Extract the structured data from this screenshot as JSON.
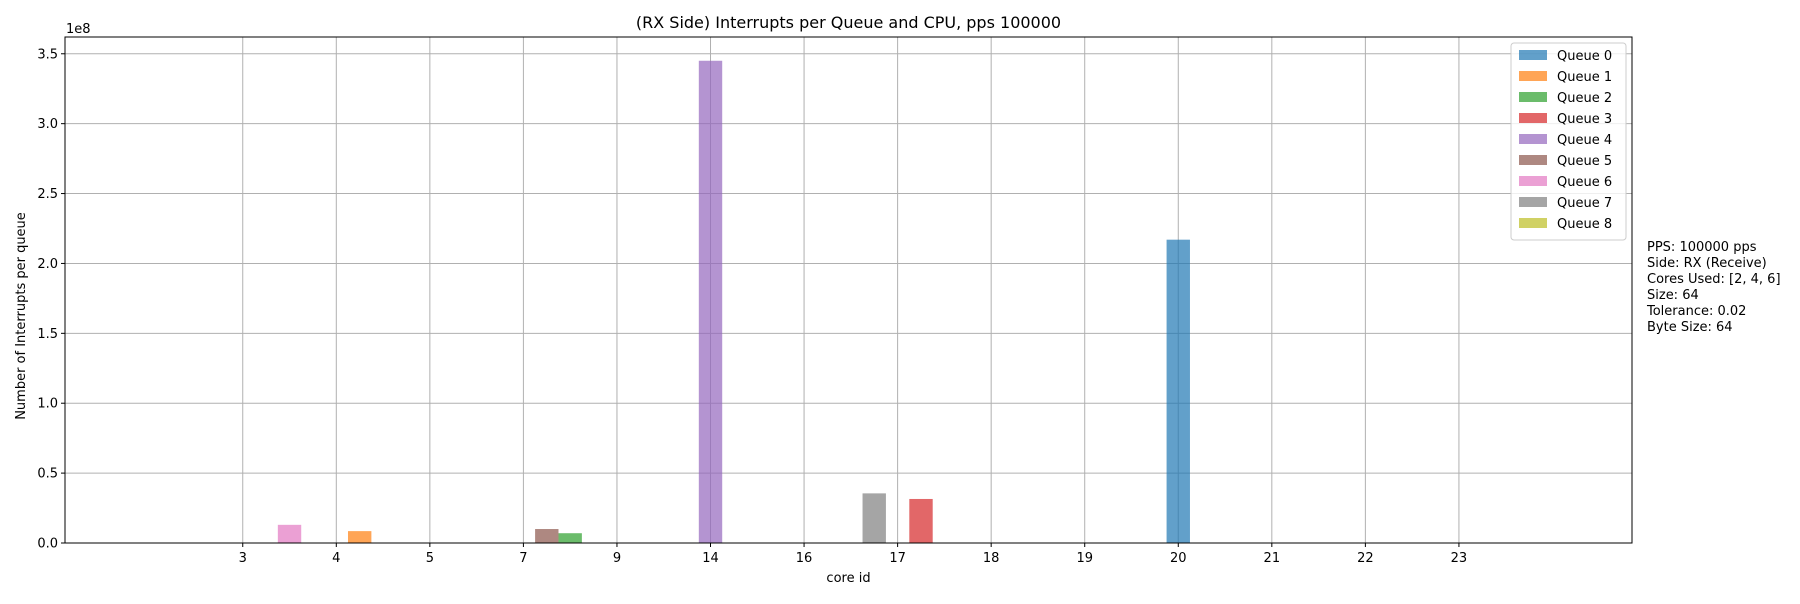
{
  "chart_data": {
    "type": "bar",
    "title": "(RX Side) Interrupts per Queue and CPU, pps 100000",
    "xlabel": "core id",
    "ylabel": "Number of Interrupts per queue",
    "y_scale_label": "1e8",
    "y_multiplier": 100000000,
    "ylim": [
      0,
      3.62
    ],
    "yticks": [
      0.0,
      0.5,
      1.0,
      1.5,
      2.0,
      2.5,
      3.0,
      3.5
    ],
    "ytick_labels": [
      "0.0",
      "0.5",
      "1.0",
      "1.5",
      "2.0",
      "2.5",
      "3.0",
      "3.5"
    ],
    "categories": [
      "3",
      "4",
      "5",
      "7",
      "9",
      "14",
      "16",
      "17",
      "18",
      "19",
      "20",
      "21",
      "22",
      "23"
    ],
    "x_range": [
      -1.9,
      14.85
    ],
    "bar_width": 0.25,
    "grid": true,
    "legend_position": "top-right",
    "series": [
      {
        "name": "Queue 0",
        "color": "#1f77b4",
        "values": [
          0,
          0,
          0,
          0,
          0,
          0,
          0,
          0,
          0,
          0,
          2.17,
          0,
          0,
          0
        ],
        "offsets": [
          0,
          0,
          0,
          0,
          0,
          0,
          0,
          0,
          0,
          0,
          0,
          0,
          0,
          0
        ]
      },
      {
        "name": "Queue 1",
        "color": "#ff7f0e",
        "values": [
          0,
          0.085,
          0,
          0,
          0,
          0,
          0,
          0,
          0,
          0,
          0,
          0,
          0,
          0
        ],
        "offsets": [
          0,
          0.25,
          0,
          0,
          0,
          0,
          0,
          0,
          0,
          0,
          0,
          0,
          0,
          0
        ]
      },
      {
        "name": "Queue 2",
        "color": "#2ca02c",
        "values": [
          0,
          0,
          0,
          0.07,
          0,
          0,
          0,
          0,
          0,
          0,
          0,
          0,
          0,
          0
        ],
        "offsets": [
          0,
          0,
          0,
          0.5,
          0,
          0,
          0,
          0,
          0,
          0,
          0,
          0,
          0,
          0
        ]
      },
      {
        "name": "Queue 3",
        "color": "#d62728",
        "values": [
          0,
          0,
          0,
          0,
          0,
          0,
          0,
          0,
          0.315,
          0,
          0,
          0,
          0,
          0
        ],
        "offsets": [
          0,
          0,
          0,
          0,
          0,
          0,
          0,
          0,
          -0.75,
          0,
          0,
          0,
          0,
          0
        ]
      },
      {
        "name": "Queue 4",
        "color": "#9467bd",
        "values": [
          0,
          0,
          0,
          0,
          0,
          3.45,
          0,
          0,
          0,
          0,
          0,
          0,
          0,
          0
        ],
        "offsets": [
          0,
          0,
          0,
          0,
          0,
          0,
          0,
          0,
          0,
          0,
          0,
          0,
          0,
          0
        ]
      },
      {
        "name": "Queue 5",
        "color": "#8c564b",
        "values": [
          0,
          0,
          0,
          0.1,
          0,
          0,
          0,
          0,
          0,
          0,
          0,
          0,
          0,
          0
        ],
        "offsets": [
          0,
          0,
          0,
          0.25,
          0,
          0,
          0,
          0,
          0,
          0,
          0,
          0,
          0,
          0
        ]
      },
      {
        "name": "Queue 6",
        "color": "#e377c2",
        "values": [
          0.13,
          0,
          0,
          0,
          0,
          0,
          0,
          0,
          0,
          0,
          0,
          0,
          0,
          0
        ],
        "offsets": [
          0.5,
          0,
          0,
          0,
          0,
          0,
          0,
          0,
          0,
          0,
          0,
          0,
          0,
          0
        ]
      },
      {
        "name": "Queue 7",
        "color": "#7f7f7f",
        "values": [
          0,
          0,
          0,
          0,
          0,
          0,
          0,
          0.355,
          0,
          0,
          0,
          0,
          0,
          0
        ],
        "offsets": [
          0,
          0,
          0,
          0,
          0,
          0,
          0,
          -0.25,
          0,
          0,
          0,
          0,
          0,
          0
        ]
      },
      {
        "name": "Queue 8",
        "color": "#bcbd22",
        "values": [
          0,
          0,
          0,
          0,
          0,
          0,
          0,
          0,
          0,
          0,
          0,
          0,
          0,
          0
        ],
        "offsets": [
          0,
          0,
          0,
          0,
          0,
          0,
          0,
          0,
          0,
          0,
          0,
          0,
          0,
          0
        ]
      }
    ]
  },
  "info_box": {
    "lines": [
      "PPS: 100000 pps",
      "Side: RX (Receive)",
      "Cores Used: [2, 4, 6]",
      "Size: 64",
      "Tolerance: 0.02",
      "Byte Size: 64"
    ]
  }
}
